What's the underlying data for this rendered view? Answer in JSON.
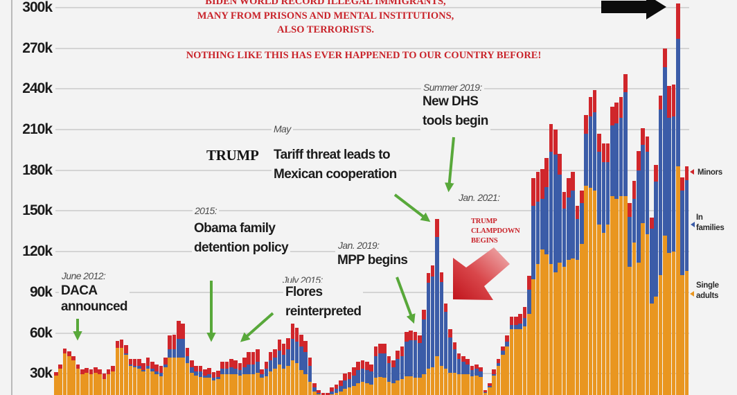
{
  "title_lines": [
    "BIDEN WORLD RECORD ILLEGAL IMMIGRANTS,",
    "MANY FROM PRISONS AND MENTAL INSTITUTIONS,",
    "ALSO TERRORISTS.",
    "NOTHING LIKE THIS HAS EVER HAPPENED TO OUR COUNTRY BEFORE!"
  ],
  "annotations": {
    "daca": {
      "date": "June 2012:",
      "lines": [
        "DACA",
        "announced"
      ]
    },
    "obama": {
      "date": "2015:",
      "lines": [
        "Obama family",
        "detention policy"
      ]
    },
    "flores": {
      "date": "July 2015:",
      "lines": [
        "Flores",
        "reinterpreted"
      ]
    },
    "mpp": {
      "date": "Jan. 2019:",
      "lines": [
        "MPP begins"
      ]
    },
    "tariff": {
      "date": "May",
      "prefix": "TRUMP",
      "lines": [
        "Tariff threat leads to",
        "Mexican cooperation"
      ]
    },
    "dhs": {
      "date": "Summer 2019:",
      "lines": [
        "New DHS",
        "tools begin"
      ]
    },
    "jan2021": {
      "date": "Jan. 2021:"
    },
    "clampdown": {
      "lines": [
        "TRUMP",
        "CLAMPDOWN",
        "BEGINS"
      ]
    }
  },
  "legend": [
    {
      "lines": [
        "Minors"
      ],
      "color": "#d0262b"
    },
    {
      "lines": [
        "In",
        "families"
      ],
      "color": "#3b5ca8"
    },
    {
      "lines": [
        "Single",
        "adults"
      ],
      "color": "#e99620"
    }
  ],
  "colors": {
    "background": "#f3f3f3",
    "single_adults": "#e99620",
    "in_families": "#3b5ca8",
    "minors": "#d0262b",
    "annotation_arrow": "#58a83a",
    "headline": "#c9232a"
  },
  "chart_data": {
    "type": "bar",
    "stacked": true,
    "title": "BIDEN WORLD RECORD ILLEGAL IMMIGRANTS, MANY FROM PRISONS AND MENTAL INSTITUTIONS, ALSO TERRORISTS. NOTHING LIKE THIS HAS EVER HAPPENED TO OUR COUNTRY BEFORE!",
    "xlabel": "",
    "ylabel": "",
    "units": "thousands",
    "ylim": [
      0,
      300
    ],
    "grid": true,
    "legend_position": "right",
    "y_tick_values": [
      30,
      60,
      90,
      120,
      150,
      180,
      210,
      240,
      270,
      300
    ],
    "y_tick_labels": [
      "30k",
      "60k",
      "90k",
      "120k",
      "150k",
      "180k",
      "210k",
      "240k",
      "270k",
      "300k"
    ],
    "categories": [
      1,
      2,
      3,
      4,
      5,
      6,
      7,
      8,
      9,
      10,
      11,
      12,
      13,
      14,
      15,
      16,
      17,
      18,
      19,
      20,
      21,
      22,
      23,
      24,
      25,
      26,
      27,
      28,
      29,
      30,
      31,
      32,
      33,
      34,
      35,
      36,
      37,
      38,
      39,
      40,
      41,
      42,
      43,
      44,
      45,
      46,
      47,
      48,
      49,
      50,
      51,
      52,
      53,
      54,
      55,
      56,
      57,
      58,
      59,
      60,
      61,
      62,
      63,
      64,
      65,
      66,
      67,
      68,
      69,
      70,
      71,
      72,
      73,
      74,
      75,
      76,
      77,
      78,
      79,
      80,
      81,
      82,
      83,
      84,
      85,
      86,
      87,
      88,
      89,
      90,
      91,
      92,
      93,
      94,
      95,
      96,
      97,
      98,
      99,
      100,
      101,
      102,
      103,
      104,
      105,
      106,
      107,
      108,
      109,
      110,
      111,
      112,
      113,
      114,
      115,
      116,
      117,
      118,
      119,
      120,
      121,
      122,
      123,
      124,
      125,
      126,
      127,
      128,
      129,
      130,
      131,
      132,
      133,
      134,
      135,
      136,
      137,
      138,
      139,
      140,
      141,
      142,
      143,
      144,
      145
    ],
    "series": [
      {
        "name": "Single adults",
        "color": "#e99620",
        "values": [
          29,
          34,
          45,
          43,
          40,
          34,
          30,
          31,
          30,
          31,
          30,
          26,
          30,
          32,
          49,
          49,
          44,
          36,
          35,
          34,
          32,
          34,
          32,
          30,
          28,
          35,
          42,
          42,
          42,
          42,
          38,
          31,
          29,
          28,
          27,
          27,
          25,
          26,
          30,
          30,
          30,
          30,
          29,
          30,
          30,
          30,
          31,
          27,
          28,
          32,
          34,
          37,
          34,
          36,
          40,
          38,
          33,
          30,
          24,
          17,
          15,
          13,
          13,
          15,
          16,
          17,
          19,
          20,
          21,
          23,
          24,
          23,
          22,
          27,
          28,
          27,
          24,
          23,
          25,
          26,
          28,
          28,
          27,
          27,
          30,
          34,
          35,
          43,
          36,
          34,
          31,
          31,
          30,
          30,
          30,
          28,
          29,
          28,
          16,
          20,
          29,
          36,
          44,
          50,
          63,
          63,
          63,
          65,
          74,
          100,
          111,
          122,
          118,
          111,
          105,
          112,
          109,
          114,
          115,
          114,
          126,
          169,
          167,
          165,
          140,
          134,
          140,
          161,
          159,
          161,
          161,
          109,
          127,
          112,
          141,
          133,
          82,
          87,
          103,
          132,
          119,
          120,
          183,
          103,
          106
        ]
      },
      {
        "name": "In families",
        "color": "#3b5ca8",
        "values": [
          0,
          0,
          0,
          0,
          0,
          0,
          0,
          0,
          0,
          0,
          0,
          0,
          0,
          0,
          0,
          0,
          1,
          1,
          1,
          2,
          1,
          2,
          2,
          2,
          3,
          2,
          6,
          6,
          14,
          14,
          5,
          4,
          3,
          4,
          2,
          3,
          2,
          2,
          4,
          4,
          5,
          4,
          4,
          5,
          7,
          7,
          8,
          3,
          6,
          8,
          8,
          10,
          10,
          12,
          16,
          16,
          17,
          16,
          12,
          3,
          1,
          1,
          1,
          2,
          3,
          4,
          6,
          6,
          8,
          10,
          10,
          10,
          10,
          16,
          17,
          18,
          14,
          12,
          16,
          17,
          26,
          27,
          28,
          26,
          40,
          63,
          67,
          88,
          62,
          42,
          26,
          17,
          11,
          9,
          7,
          5,
          5,
          4,
          0.5,
          1,
          1,
          2,
          3,
          4,
          3,
          3,
          4,
          6,
          18,
          54,
          46,
          37,
          50,
          83,
          87,
          65,
          43,
          46,
          50,
          30,
          30,
          38,
          53,
          58,
          54,
          52,
          46,
          52,
          56,
          58,
          77,
          37,
          32,
          68,
          58,
          61,
          55,
          85,
          122,
          124,
          100,
          100,
          94,
          62,
          67
        ]
      },
      {
        "name": "Minors",
        "color": "#d0262b",
        "values": [
          2,
          3,
          3.5,
          3.5,
          3,
          3,
          3,
          3,
          3,
          4,
          3,
          4,
          3,
          4,
          5,
          6,
          6,
          4,
          5,
          5,
          5,
          6,
          5,
          5,
          5,
          5,
          10,
          11,
          13,
          11,
          6,
          5,
          4,
          4,
          4,
          4,
          4,
          4,
          5,
          5,
          6,
          6,
          5,
          7,
          9,
          9,
          9,
          3,
          5,
          6,
          6,
          8,
          8,
          8,
          11,
          10,
          9,
          8,
          6,
          3,
          2,
          2,
          2,
          3,
          3,
          4,
          5,
          5,
          6,
          6,
          6,
          6,
          5,
          7,
          7,
          7,
          5,
          5,
          6,
          7,
          7,
          7,
          6,
          5,
          7,
          7,
          8,
          13,
          7,
          6,
          6,
          5,
          4,
          4,
          4,
          3,
          3,
          3,
          1.5,
          2,
          3,
          3,
          3,
          4,
          6,
          6,
          7,
          8,
          10,
          20,
          22,
          22,
          21,
          20,
          18,
          15,
          12,
          14,
          14,
          10,
          9,
          14,
          14,
          16,
          13,
          14,
          14,
          14,
          15,
          15,
          13,
          10,
          13,
          14,
          12,
          11,
          8,
          12,
          10,
          14,
          23,
          23,
          26,
          10,
          10
        ]
      }
    ],
    "annotations": [
      "June 2012: DACA announced",
      "2015: Obama family detention policy",
      "July 2015: Flores reinterpreted",
      "Jan. 2019: MPP begins",
      "May TRUMP Tariff threat leads to Mexican cooperation",
      "Summer 2019: New DHS tools begin",
      "Jan. 2021: TRUMP CLAMPDOWN BEGINS"
    ]
  }
}
